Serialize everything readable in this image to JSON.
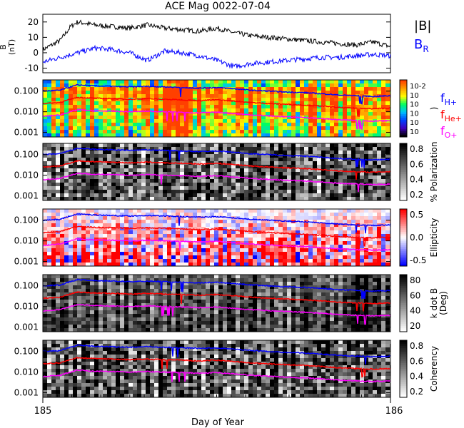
{
  "chart_data": {
    "title": "ACE Mag 0022-07-04",
    "xlabel": "Day of Year",
    "x_ticks": [
      "185",
      "186"
    ],
    "xlim": [
      185,
      186
    ],
    "panels": [
      {
        "type": "line",
        "ylabel": "B (nT)",
        "ylabel_parts": [
          "B",
          "(nT)"
        ],
        "yticks": [
          "20",
          "10",
          "0",
          "-10"
        ],
        "ylim": [
          -13,
          25
        ],
        "legend": [
          "|B|",
          "B"
        ],
        "legend_sub": [
          "",
          "R"
        ],
        "legend_colors": [
          "#000000",
          "#0000ff"
        ],
        "series": [
          {
            "name": "|B|",
            "color": "#000000",
            "x": [
              185.0,
              185.05,
              185.08,
              185.1,
              185.15,
              185.2,
              185.25,
              185.3,
              185.35,
              185.4,
              185.45,
              185.5,
              185.55,
              185.6,
              185.65,
              185.7,
              185.75,
              185.8,
              185.85,
              185.9,
              185.95,
              186.0
            ],
            "y": [
              2,
              8,
              17,
              20,
              18,
              17,
              16,
              18,
              16,
              15,
              14,
              16,
              13,
              11,
              10,
              9,
              8,
              7,
              6,
              5,
              7,
              4
            ]
          },
          {
            "name": "BR",
            "color": "#0000ff",
            "x": [
              185.0,
              185.05,
              185.1,
              185.15,
              185.2,
              185.25,
              185.3,
              185.35,
              185.4,
              185.45,
              185.5,
              185.55,
              185.6,
              185.65,
              185.7,
              185.75,
              185.8,
              185.85,
              185.9,
              185.95,
              186.0
            ],
            "y": [
              -6,
              -3,
              0,
              3,
              2,
              0,
              -5,
              1,
              0,
              -2,
              -5,
              -9,
              -7,
              -6,
              -5,
              -4,
              -3,
              -3,
              -2,
              -1,
              -2
            ]
          }
        ]
      },
      {
        "type": "heatmap",
        "yticks": [
          "0.100",
          "0.010",
          "0.001"
        ],
        "ylim": [
          0.0006,
          0.35
        ],
        "yscale": "log",
        "colorbar_label": ")",
        "colorbar_ticks": [
          "10-2",
          "10",
          "10",
          "10",
          "10",
          "10"
        ],
        "colorbar_colors": [
          "#ff4000",
          "#ffa000",
          "#ffff00",
          "#00ff60",
          "#00c0ff",
          "#0040ff",
          "#4000c0",
          "#000000"
        ],
        "legend": [
          "f",
          "f",
          "f"
        ],
        "legend_sub": [
          "H+",
          "He+",
          "O+"
        ],
        "legend_colors": [
          "#0000ff",
          "#ff0000",
          "#ff00ff"
        ]
      },
      {
        "type": "heatmap",
        "yticks": [
          "0.100",
          "0.010",
          "0.001"
        ],
        "yscale": "log",
        "colorbar_label": "% Polarization",
        "colorbar_ticks": [
          "0.8",
          "0.6",
          "0.4",
          "0.2"
        ],
        "colorbar_colors": [
          "#000000",
          "#ffffff"
        ]
      },
      {
        "type": "heatmap",
        "yticks": [
          "0.100",
          "0.010",
          "0.001"
        ],
        "yscale": "log",
        "colorbar_label": "Ellipticity",
        "colorbar_ticks": [
          "0.5",
          "0.0",
          "-0.5"
        ],
        "colorbar_colors": [
          "#ff0000",
          "#ffffff",
          "#0000ff"
        ]
      },
      {
        "type": "heatmap",
        "yticks": [
          "0.100",
          "0.010",
          "0.001"
        ],
        "yscale": "log",
        "colorbar_label": "k dot B (Deg)",
        "colorbar_label_lines": [
          "k dot B",
          "(Deg)"
        ],
        "colorbar_ticks": [
          "80",
          "60",
          "40",
          "20"
        ],
        "colorbar_colors": [
          "#000000",
          "#ffffff"
        ]
      },
      {
        "type": "heatmap",
        "yticks": [
          "0.100",
          "0.010",
          "0.001"
        ],
        "yscale": "log",
        "colorbar_label": "Coherency",
        "colorbar_ticks": [
          "0.8",
          "0.6",
          "0.4",
          "0.2"
        ],
        "colorbar_colors": [
          "#000000",
          "#ffffff"
        ]
      }
    ],
    "gyrofrequency_lines": [
      {
        "name": "fH+",
        "color": "#0000ff",
        "x": [
          185.0,
          185.05,
          185.08,
          185.1,
          185.15,
          185.2,
          185.25,
          185.3,
          185.35,
          185.4,
          185.45,
          185.5,
          185.55,
          185.6,
          185.65,
          185.7,
          185.75,
          185.8,
          185.85,
          185.9,
          185.95,
          186.0
        ],
        "y": [
          0.1,
          0.11,
          0.16,
          0.2,
          0.18,
          0.17,
          0.16,
          0.17,
          0.16,
          0.15,
          0.14,
          0.15,
          0.13,
          0.11,
          0.1,
          0.09,
          0.085,
          0.075,
          0.065,
          0.06,
          0.055,
          0.06
        ]
      },
      {
        "name": "fHe+",
        "color": "#ff0000",
        "x": [
          185.0,
          185.05,
          185.08,
          185.1,
          185.15,
          185.2,
          185.25,
          185.3,
          185.35,
          185.4,
          185.45,
          185.5,
          185.55,
          185.6,
          185.65,
          185.7,
          185.75,
          185.8,
          185.85,
          185.9,
          185.95,
          186.0
        ],
        "y": [
          0.025,
          0.028,
          0.04,
          0.05,
          0.045,
          0.043,
          0.04,
          0.043,
          0.04,
          0.038,
          0.035,
          0.038,
          0.033,
          0.028,
          0.025,
          0.023,
          0.021,
          0.019,
          0.016,
          0.015,
          0.014,
          0.015
        ]
      },
      {
        "name": "fO+",
        "color": "#ff00ff",
        "x": [
          185.0,
          185.05,
          185.08,
          185.1,
          185.15,
          185.2,
          185.25,
          185.3,
          185.35,
          185.4,
          185.45,
          185.5,
          185.55,
          185.6,
          185.65,
          185.7,
          185.75,
          185.8,
          185.85,
          185.9,
          185.95,
          186.0
        ],
        "y": [
          0.006,
          0.007,
          0.01,
          0.0125,
          0.011,
          0.0107,
          0.01,
          0.0107,
          0.01,
          0.0095,
          0.0088,
          0.0095,
          0.0082,
          0.007,
          0.0063,
          0.0057,
          0.0053,
          0.0047,
          0.0041,
          0.0038,
          0.0035,
          0.0037
        ]
      }
    ]
  }
}
